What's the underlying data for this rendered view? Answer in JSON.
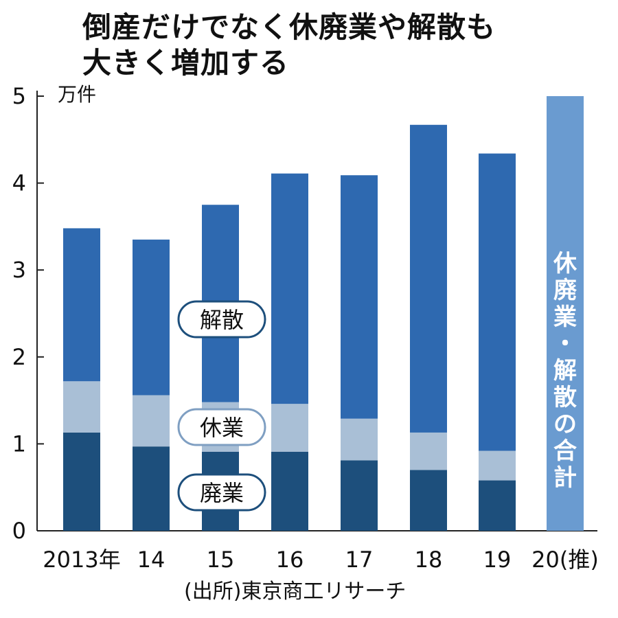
{
  "title_lines": [
    "倒産だけでなく休廃業や解散も",
    "大きく増加する"
  ],
  "unit_label": "万件",
  "source": "(出所)東京商工リサーチ",
  "colors": {
    "haigyo": "#1d4f7c",
    "kyugyo": "#a9bfd6",
    "kaisan": "#2e69b0",
    "total": "#6a9bd0",
    "axis": "#222222"
  },
  "chart_data": {
    "type": "bar",
    "stacked": true,
    "categories": [
      "2013年",
      "14",
      "15",
      "16",
      "17",
      "18",
      "19",
      "20(推)"
    ],
    "series": [
      {
        "name": "廃業",
        "values": [
          1.13,
          0.97,
          0.91,
          0.91,
          0.81,
          0.7,
          0.58,
          null
        ]
      },
      {
        "name": "休業",
        "values": [
          0.59,
          0.59,
          0.57,
          0.55,
          0.48,
          0.43,
          0.34,
          null
        ]
      },
      {
        "name": "解散",
        "values": [
          1.76,
          1.79,
          2.27,
          2.65,
          2.8,
          3.54,
          3.42,
          null
        ]
      },
      {
        "name": "休廃業・解散の合計",
        "values": [
          null,
          null,
          null,
          null,
          null,
          null,
          null,
          5.0
        ]
      }
    ],
    "ylim": [
      0,
      5
    ],
    "yticks": [
      0,
      1,
      2,
      3,
      4,
      5
    ],
    "ylabel": "万件",
    "series_labels": [
      "解散",
      "休業",
      "廃業"
    ],
    "total_label": "休廃業・解散の合計"
  }
}
